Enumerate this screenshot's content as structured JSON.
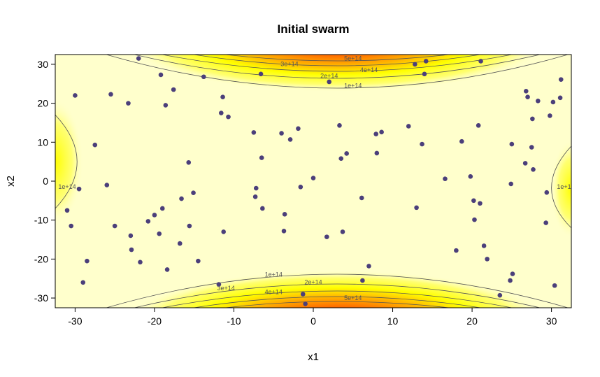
{
  "chart_data": {
    "type": "scatter",
    "title": "Initial swarm",
    "xlabel": "x1",
    "ylabel": "x2",
    "xlim": [
      -32.5,
      32.5
    ],
    "ylim": [
      -32.5,
      32.5
    ],
    "x_ticks": [
      -30,
      -20,
      -10,
      0,
      10,
      20,
      30
    ],
    "y_ticks": [
      -30,
      -20,
      -10,
      0,
      10,
      20,
      30
    ],
    "x_tick_labels": [
      "-30",
      "-20",
      "-10",
      "0",
      "10",
      "20",
      "30"
    ],
    "y_tick_labels": [
      "-30",
      "-20",
      "-10",
      "0",
      "10",
      "20",
      "30"
    ],
    "background": "filled-contour heat map (yellow to red)",
    "colors": {
      "low": "#FFFFCC",
      "mid": "#FFFF00",
      "high": "#FF8000",
      "peak": "#FF0000",
      "points": "#4B3F7A",
      "contour": "#555555"
    },
    "contour_levels": [
      {
        "value": 100000000000000.0,
        "label": "1e+14"
      },
      {
        "value": 200000000000000.0,
        "label": "2e+14"
      },
      {
        "value": 300000000000000.0,
        "label": "3e+14"
      },
      {
        "value": 400000000000000.0,
        "label": "4e+14"
      },
      {
        "value": 500000000000000.0,
        "label": "5e+14"
      }
    ],
    "points": {
      "x": [
        -30,
        -31,
        -30.5,
        -29.5,
        -28.5,
        -29,
        -27.5,
        -26,
        -25.5,
        -25,
        -23.3,
        -23,
        -22.9,
        -22,
        -21.8,
        -20.8,
        -20,
        -19.4,
        -19.2,
        -19,
        -18.6,
        -18.4,
        -17.6,
        -16.8,
        -16.6,
        -15.7,
        -15.6,
        -15.1,
        -14.5,
        -13.8,
        -11.9,
        -11.6,
        -11.4,
        -11.3,
        -10.7,
        -7.5,
        -7.3,
        -7.2,
        -6.6,
        -6.5,
        -6.4,
        -4,
        -3.7,
        -3.6,
        -2.9,
        -1.9,
        -1.6,
        -1.3,
        -1,
        0,
        1.7,
        2,
        3.3,
        3.5,
        3.7,
        4.2,
        6.1,
        6.2,
        7,
        7.9,
        8,
        8.6,
        12,
        12.8,
        13,
        13.7,
        14,
        14.2,
        16.6,
        18,
        18.7,
        19.8,
        20.2,
        20.3,
        20.8,
        21,
        21.1,
        21.5,
        21.9,
        23.5,
        24.8,
        24.9,
        25,
        25.1,
        26.7,
        26.8,
        27,
        27.5,
        27.6,
        27.7,
        28.3,
        29.3,
        29.4,
        29.8,
        30.2,
        30.4,
        31.1,
        31.2
      ],
      "y": [
        22,
        -7.5,
        -11.5,
        -2,
        -20.5,
        -26,
        9.3,
        -1,
        22.3,
        -11.5,
        20,
        -14,
        -17.6,
        31.5,
        -20.8,
        -10.3,
        -8.7,
        -13.5,
        27.3,
        -7,
        19.5,
        -22.7,
        23.5,
        -16,
        -4.5,
        4.8,
        -11.5,
        -3,
        -20.5,
        26.8,
        -26.5,
        17.5,
        21.6,
        -13,
        16.5,
        12.5,
        -4,
        -1.8,
        27.5,
        6,
        -7,
        12.3,
        -12.8,
        -8.5,
        10.7,
        13.5,
        -1.5,
        -29,
        -31.5,
        0.8,
        -14.3,
        25.5,
        14.3,
        5.8,
        -13,
        7.1,
        -4.3,
        -25.5,
        -21.8,
        12.1,
        7.2,
        12.6,
        14.1,
        30,
        -6.8,
        9.5,
        27.5,
        30.8,
        0.6,
        -17.8,
        10.2,
        1.2,
        -5,
        -9.9,
        14.3,
        -5.7,
        30.8,
        -16.6,
        -20,
        -29.3,
        -25.5,
        -0.7,
        9.5,
        -23.8,
        4.6,
        23.1,
        21.6,
        8.7,
        16,
        3,
        20.6,
        -10.7,
        -2.9,
        16.8,
        20.3,
        -26.8,
        21.4,
        26.1
      ]
    }
  }
}
